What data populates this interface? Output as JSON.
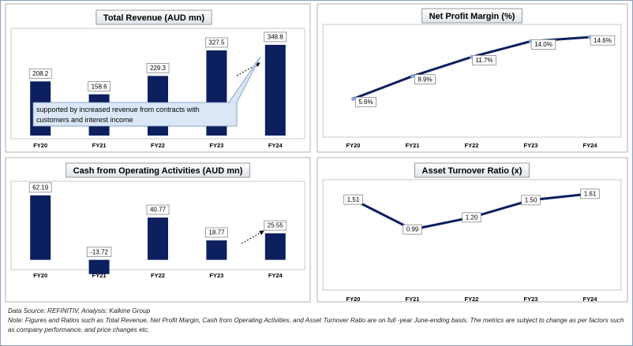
{
  "chart_data": [
    {
      "type": "bar",
      "title": "Total Revenue (AUD mn)",
      "categories": [
        "FY20",
        "FY21",
        "FY22",
        "FY23",
        "FY24"
      ],
      "values": [
        208.2,
        158.6,
        229.3,
        327.5,
        348.8
      ],
      "color": "#0c1f5e",
      "ylim": [
        0,
        400
      ],
      "annotation": "supported by increased revenue from contracts with customers and interest income"
    },
    {
      "type": "line",
      "title": "Net Profit Margin (%)",
      "categories": [
        "FY20",
        "FY21",
        "FY22",
        "FY23",
        "FY24"
      ],
      "values": [
        5.6,
        8.9,
        11.7,
        14.0,
        14.6
      ],
      "value_labels": [
        "5.6%",
        "8.9%",
        "11.7%",
        "14.0%",
        "14.6%"
      ],
      "color": "#0c1f5e",
      "ylim": [
        0,
        16
      ]
    },
    {
      "type": "bar",
      "title": "Cash from Operating Activities (AUD mn)",
      "categories": [
        "FY20",
        "FY21",
        "FY22",
        "FY23",
        "FY24"
      ],
      "values": [
        62.19,
        -13.72,
        40.77,
        18.77,
        25.55
      ],
      "color": "#0c1f5e",
      "ylim": [
        -20,
        70
      ]
    },
    {
      "type": "line",
      "title": "Asset Turnover Ratio (x)",
      "categories": [
        "FY20",
        "FY21",
        "FY22",
        "FY23",
        "FY24"
      ],
      "values": [
        1.51,
        0.99,
        1.2,
        1.5,
        1.61
      ],
      "value_labels": [
        "1.51",
        "0.99",
        "1.20",
        "1.50",
        "1.61"
      ],
      "color": "#0c1f5e",
      "ylim": [
        0.8,
        1.8
      ]
    }
  ],
  "footer": {
    "source": "Data Source: REFINITIV, Analysis: Kalkine Group",
    "note": "Note: Figures and Ratios such as Total Revenue, Net Profit Margin, Cash from Operating Activities, and Asset Turnover Ratio are on full -year June-ending basis. The metrics are subject to change as per factors such as company performance, and price changes etc."
  }
}
